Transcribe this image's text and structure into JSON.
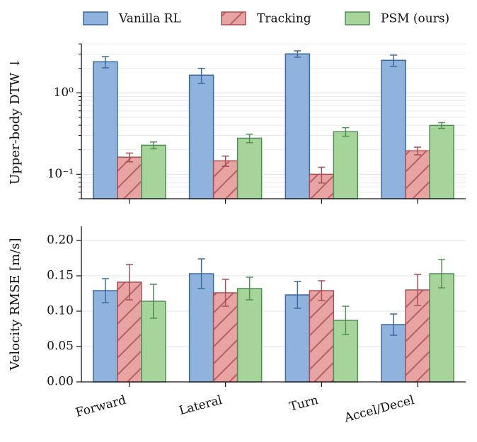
{
  "chart_data": [
    {
      "type": "bar",
      "ylabel": "Upper-body DTW ↓",
      "log_scale": true,
      "grid": true,
      "legend": "top",
      "categories": [
        null,
        null,
        null,
        null
      ],
      "ylim": [
        0.05,
        4
      ],
      "yticks": [
        {
          "value": 0.1,
          "label": "10⁻¹"
        },
        {
          "value": 1,
          "label": "10⁰"
        }
      ],
      "minor_yticks": [
        0.05,
        0.06,
        0.07,
        0.08,
        0.09,
        0.2,
        0.3,
        0.4,
        0.5,
        0.6,
        0.7,
        0.8,
        0.9,
        2,
        3,
        4
      ],
      "series": [
        {
          "name": "Vanilla RL",
          "color": "#8fb3dd",
          "edge": "#3a6a9e",
          "hatch": false,
          "values": [
            2.41,
            1.65,
            3.01,
            2.51
          ],
          "errors": [
            0.38,
            0.35,
            0.27,
            0.4
          ]
        },
        {
          "name": "Tracking",
          "color": "#e8a3a3",
          "edge": "#a84f56",
          "hatch": true,
          "values": [
            0.162,
            0.146,
            0.1,
            0.194
          ],
          "errors": [
            0.02,
            0.021,
            0.022,
            0.021
          ]
        },
        {
          "name": "PSM (ours)",
          "color": "#a7d49a",
          "edge": "#4f8f55",
          "hatch": false,
          "values": [
            0.227,
            0.277,
            0.333,
            0.398
          ],
          "errors": [
            0.022,
            0.033,
            0.04,
            0.032
          ]
        }
      ]
    },
    {
      "type": "bar",
      "ylabel": "Velocity RMSE [m/s]",
      "log_scale": false,
      "grid": true,
      "categories": [
        "Forward",
        "Lateral",
        "Turn",
        "Accel/Decel"
      ],
      "ylim": [
        0,
        0.22
      ],
      "yticks": [
        {
          "value": 0,
          "label": "0.00"
        },
        {
          "value": 0.05,
          "label": "0.05"
        },
        {
          "value": 0.1,
          "label": "0.10"
        },
        {
          "value": 0.15,
          "label": "0.15"
        },
        {
          "value": 0.2,
          "label": "0.20"
        }
      ],
      "series": [
        {
          "color": "#8fb3dd",
          "edge": "#3a6a9e",
          "hatch": false,
          "values": [
            0.129,
            0.153,
            0.123,
            0.081
          ],
          "errors": [
            0.017,
            0.021,
            0.019,
            0.015
          ]
        },
        {
          "color": "#e8a3a3",
          "edge": "#a84f56",
          "hatch": true,
          "values": [
            0.141,
            0.126,
            0.129,
            0.13
          ],
          "errors": [
            0.025,
            0.019,
            0.014,
            0.022
          ]
        },
        {
          "color": "#a7d49a",
          "edge": "#4f8f55",
          "hatch": false,
          "values": [
            0.114,
            0.132,
            0.087,
            0.153
          ],
          "errors": [
            0.024,
            0.016,
            0.02,
            0.02
          ]
        }
      ]
    }
  ]
}
